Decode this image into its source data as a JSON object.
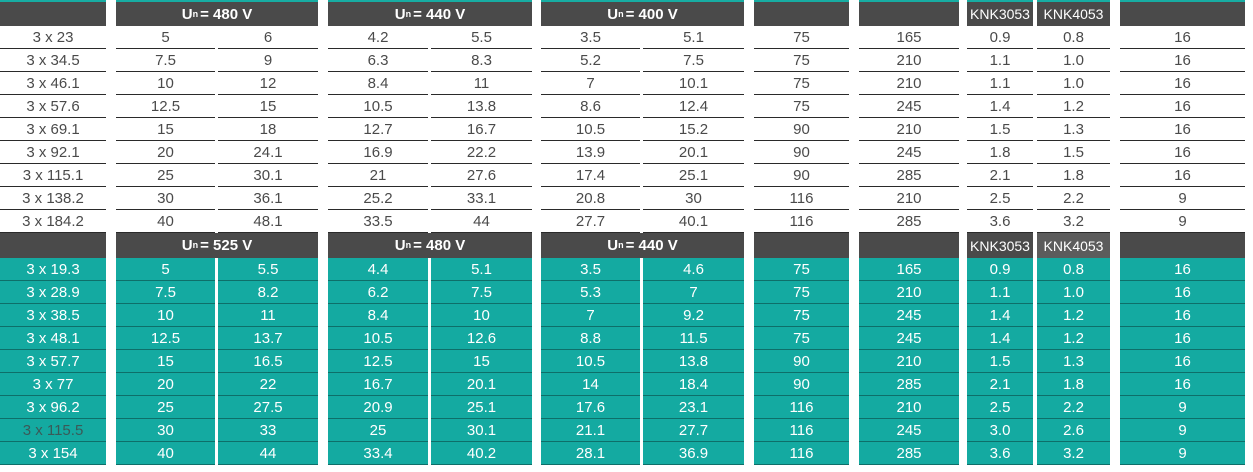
{
  "voltage_symbol": "U",
  "voltage_subscript": "n",
  "col_codes": [
    "KNK3053",
    "KNK4053"
  ],
  "top": {
    "voltages": [
      "= 480 V",
      "= 440 V",
      "= 400 V"
    ],
    "rows": [
      [
        "3 x 23",
        "5",
        "6",
        "4.2",
        "5.5",
        "3.5",
        "5.1",
        "75",
        "165",
        "0.9",
        "0.8",
        "16"
      ],
      [
        "3 x 34.5",
        "7.5",
        "9",
        "6.3",
        "8.3",
        "5.2",
        "7.5",
        "75",
        "210",
        "1.1",
        "1.0",
        "16"
      ],
      [
        "3 x 46.1",
        "10",
        "12",
        "8.4",
        "11",
        "7",
        "10.1",
        "75",
        "210",
        "1.1",
        "1.0",
        "16"
      ],
      [
        "3 x 57.6",
        "12.5",
        "15",
        "10.5",
        "13.8",
        "8.6",
        "12.4",
        "75",
        "245",
        "1.4",
        "1.2",
        "16"
      ],
      [
        "3 x 69.1",
        "15",
        "18",
        "12.7",
        "16.7",
        "10.5",
        "15.2",
        "90",
        "210",
        "1.5",
        "1.3",
        "16"
      ],
      [
        "3 x 92.1",
        "20",
        "24.1",
        "16.9",
        "22.2",
        "13.9",
        "20.1",
        "90",
        "245",
        "1.8",
        "1.5",
        "16"
      ],
      [
        "3 x 115.1",
        "25",
        "30.1",
        "21",
        "27.6",
        "17.4",
        "25.1",
        "90",
        "285",
        "2.1",
        "1.8",
        "16"
      ],
      [
        "3 x 138.2",
        "30",
        "36.1",
        "25.2",
        "33.1",
        "20.8",
        "30",
        "116",
        "210",
        "2.5",
        "2.2",
        "9"
      ],
      [
        "3 x 184.2",
        "40",
        "48.1",
        "33.5",
        "44",
        "27.7",
        "40.1",
        "116",
        "285",
        "3.6",
        "3.2",
        "9"
      ]
    ]
  },
  "bottom": {
    "voltages": [
      "= 525 V",
      "= 480 V",
      "= 440 V"
    ],
    "rows": [
      [
        "3 x 19.3",
        "5",
        "5.5",
        "4.4",
        "5.1",
        "3.5",
        "4.6",
        "75",
        "165",
        "0.9",
        "0.8",
        "16"
      ],
      [
        "3 x 28.9",
        "7.5",
        "8.2",
        "6.2",
        "7.5",
        "5.3",
        "7",
        "75",
        "210",
        "1.1",
        "1.0",
        "16"
      ],
      [
        "3 x 38.5",
        "10",
        "11",
        "8.4",
        "10",
        "7",
        "9.2",
        "75",
        "245",
        "1.4",
        "1.2",
        "16"
      ],
      [
        "3 x 48.1",
        "12.5",
        "13.7",
        "10.5",
        "12.6",
        "8.8",
        "11.5",
        "75",
        "245",
        "1.4",
        "1.2",
        "16"
      ],
      [
        "3 x 57.7",
        "15",
        "16.5",
        "12.5",
        "15",
        "10.5",
        "13.8",
        "90",
        "210",
        "1.5",
        "1.3",
        "16"
      ],
      [
        "3 x 77",
        "20",
        "22",
        "16.7",
        "20.1",
        "14",
        "18.4",
        "90",
        "285",
        "2.1",
        "1.8",
        "16"
      ],
      [
        "3 x 96.2",
        "25",
        "27.5",
        "20.9",
        "25.1",
        "17.6",
        "23.1",
        "116",
        "210",
        "2.5",
        "2.2",
        "9"
      ],
      [
        "3 x 115.5",
        "30",
        "33",
        "25",
        "30.1",
        "21.1",
        "27.7",
        "116",
        "245",
        "3.0",
        "2.6",
        "9"
      ],
      [
        "3 x 154",
        "40",
        "44",
        "33.4",
        "40.2",
        "28.1",
        "36.9",
        "116",
        "285",
        "3.6",
        "3.2",
        "9"
      ]
    ]
  }
}
